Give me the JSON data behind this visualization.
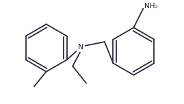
{
  "bg_color": "#ffffff",
  "line_color": "#2a2a3e",
  "text_color": "#1a1a2e",
  "figsize": [
    2.69,
    1.52
  ],
  "dpi": 100,
  "lw": 1.3,
  "font_size_N": 8,
  "font_size_NH2": 7.5
}
